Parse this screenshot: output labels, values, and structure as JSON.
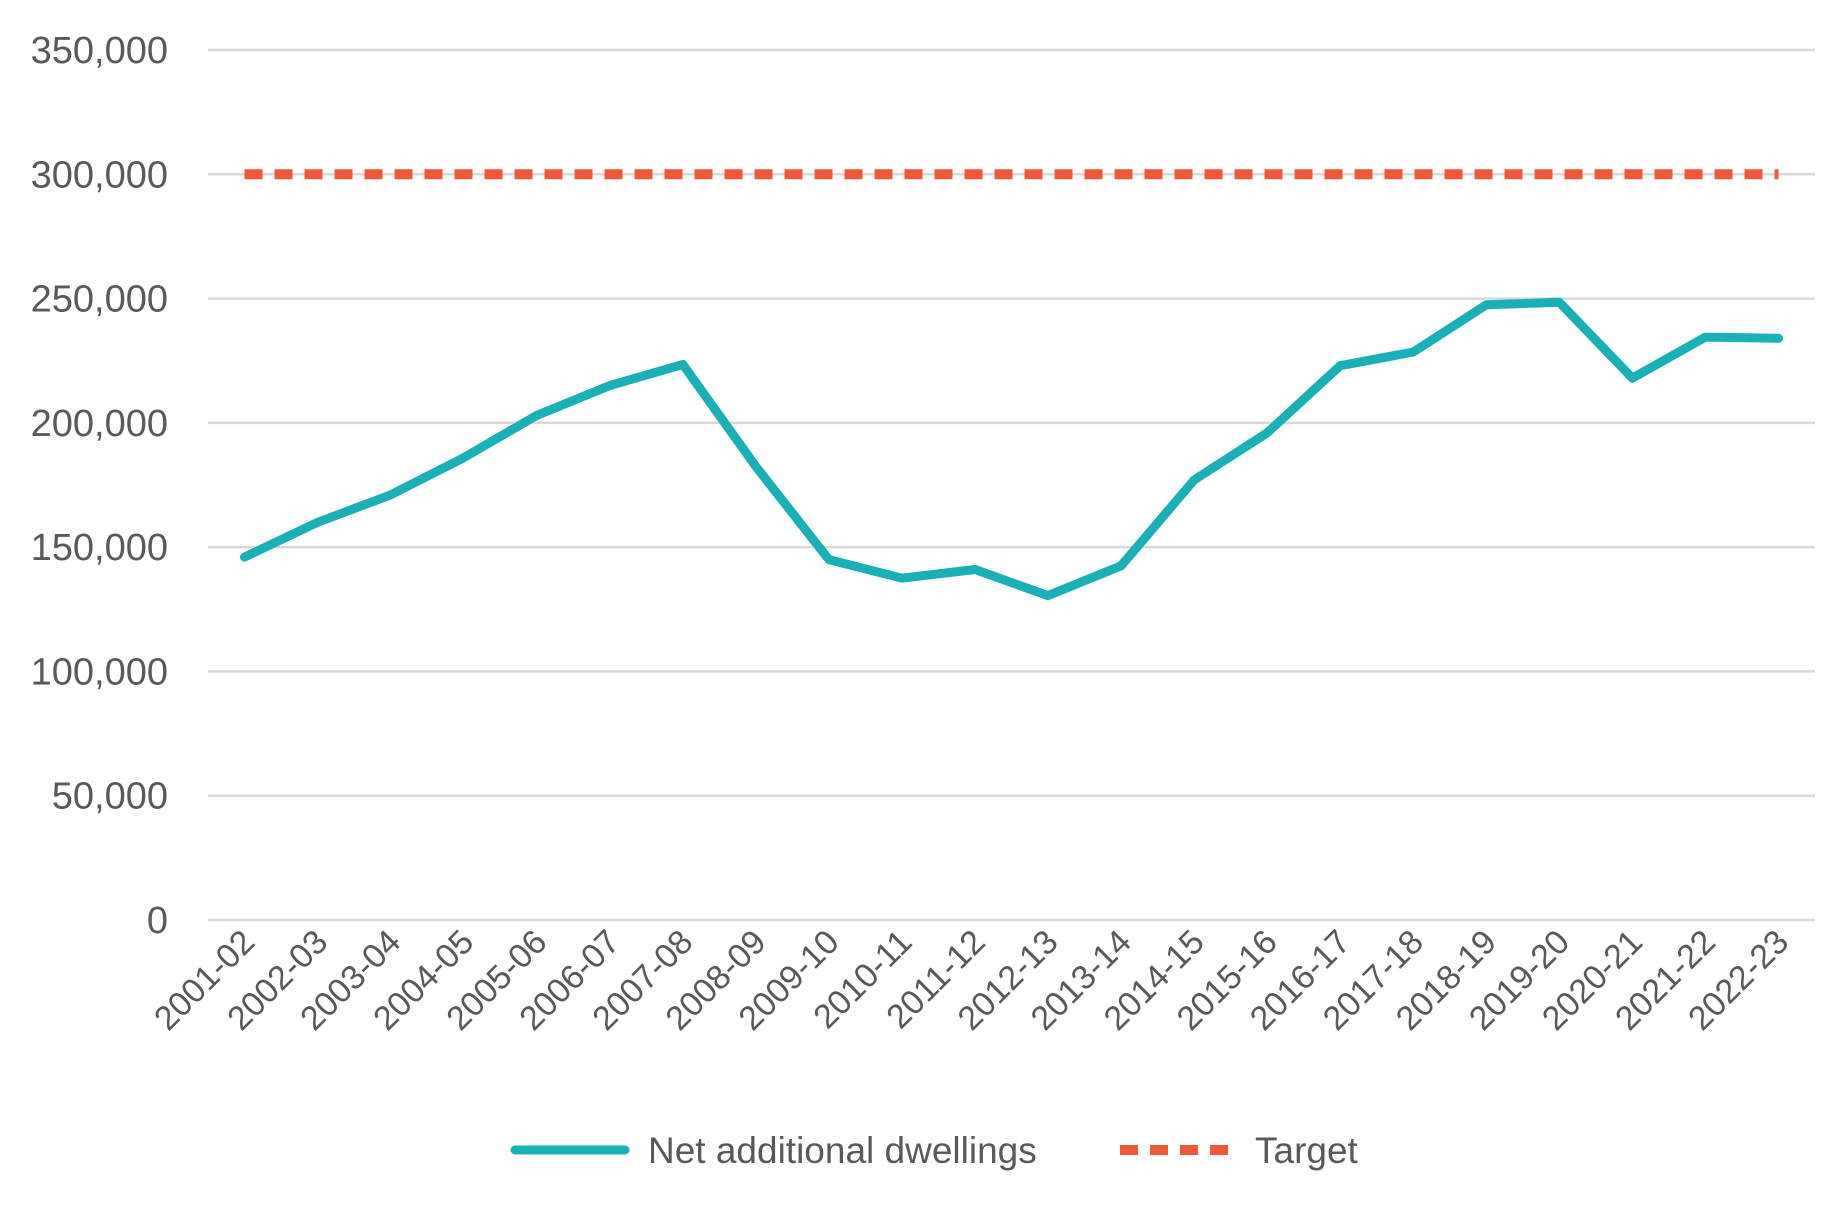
{
  "chart_data": {
    "type": "line",
    "categories": [
      "2001-02",
      "2002-03",
      "2003-04",
      "2004-05",
      "2005-06",
      "2006-07",
      "2007-08",
      "2008-09",
      "2009-10",
      "2010-11",
      "2011-12",
      "2012-13",
      "2013-14",
      "2014-15",
      "2015-16",
      "2016-17",
      "2017-18",
      "2018-19",
      "2019-20",
      "2020-21",
      "2021-22",
      "2022-23"
    ],
    "series": [
      {
        "name": "Net additional dwellings",
        "color": "#1ab0b8",
        "style": "solid",
        "values": [
          146000,
          160000,
          171000,
          186000,
          203000,
          215000,
          223500,
          182500,
          145000,
          137500,
          141000,
          130500,
          142500,
          177000,
          196000,
          223000,
          228500,
          247500,
          248500,
          218000,
          234500,
          234000
        ]
      },
      {
        "name": "Target",
        "color": "#f0583a",
        "style": "dashed",
        "values": [
          300000,
          300000,
          300000,
          300000,
          300000,
          300000,
          300000,
          300000,
          300000,
          300000,
          300000,
          300000,
          300000,
          300000,
          300000,
          300000,
          300000,
          300000,
          300000,
          300000,
          300000,
          300000
        ]
      }
    ],
    "y_ticks": [
      "0",
      "50,000",
      "100,000",
      "150,000",
      "200,000",
      "250,000",
      "300,000",
      "350,000"
    ],
    "ylim": [
      0,
      350000
    ],
    "title": "",
    "xlabel": "",
    "ylabel": "",
    "grid": true,
    "legend_position": "bottom"
  }
}
